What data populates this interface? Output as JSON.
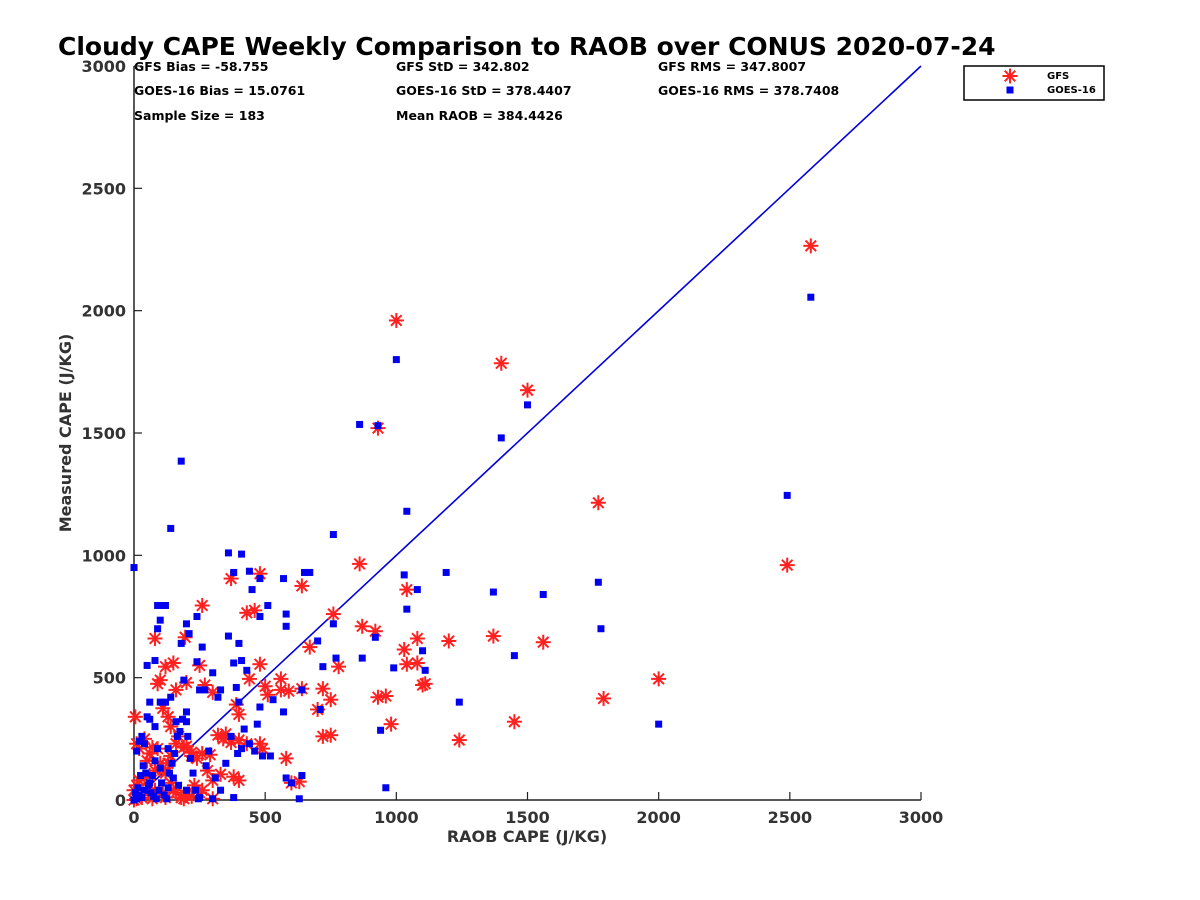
{
  "chart_data": {
    "type": "scatter",
    "title": "Cloudy CAPE Weekly Comparison to RAOB over CONUS 2020-07-24",
    "xlabel": "RAOB CAPE (J/KG)",
    "ylabel": "Measured CAPE (J/KG)",
    "xlim": [
      0,
      3000
    ],
    "ylim": [
      0,
      3000
    ],
    "xticks": [
      "0",
      "500",
      "1000",
      "1500",
      "2000",
      "2500",
      "3000"
    ],
    "yticks": [
      "0",
      "500",
      "1000",
      "1500",
      "2000",
      "2500",
      "3000"
    ],
    "grid": false,
    "legend_position": "top-right",
    "reference_line": {
      "x": [
        0,
        3000
      ],
      "y": [
        0,
        3000
      ],
      "color": "#0000dd"
    },
    "stats": [
      {
        "label": "GFS Bias = -58.755"
      },
      {
        "label": "GFS StD = 342.802"
      },
      {
        "label": "GFS RMS = 347.8007"
      },
      {
        "label": "GOES-16 Bias = 15.0761"
      },
      {
        "label": "GOES-16 StD = 378.4407"
      },
      {
        "label": "GOES-16 RMS = 378.7408"
      },
      {
        "label": "Sample Size = 183"
      },
      {
        "label": "Mean RAOB = 384.4426"
      }
    ],
    "series": [
      {
        "name": "GFS",
        "marker": "asterisk",
        "color": "#ff2020",
        "points": [
          [
            2580,
            2265
          ],
          [
            1000,
            1960
          ],
          [
            1400,
            1785
          ],
          [
            1500,
            1675
          ],
          [
            930,
            1520
          ],
          [
            1770,
            1215
          ],
          [
            2490,
            960
          ],
          [
            860,
            965
          ],
          [
            480,
            925
          ],
          [
            370,
            905
          ],
          [
            640,
            875
          ],
          [
            1040,
            860
          ],
          [
            260,
            795
          ],
          [
            460,
            775
          ],
          [
            430,
            765
          ],
          [
            760,
            760
          ],
          [
            870,
            710
          ],
          [
            920,
            690
          ],
          [
            1080,
            660
          ],
          [
            1200,
            650
          ],
          [
            1370,
            670
          ],
          [
            1560,
            645
          ],
          [
            80,
            660
          ],
          [
            195,
            665
          ],
          [
            670,
            625
          ],
          [
            1030,
            615
          ],
          [
            1110,
            475
          ],
          [
            1100,
            470
          ],
          [
            1040,
            555
          ],
          [
            1080,
            560
          ],
          [
            780,
            545
          ],
          [
            480,
            555
          ],
          [
            440,
            495
          ],
          [
            560,
            495
          ],
          [
            590,
            445
          ],
          [
            720,
            455
          ],
          [
            960,
            425
          ],
          [
            930,
            420
          ],
          [
            1790,
            415
          ],
          [
            2000,
            495
          ],
          [
            750,
            410
          ],
          [
            390,
            390
          ],
          [
            400,
            350
          ],
          [
            500,
            465
          ],
          [
            510,
            430
          ],
          [
            560,
            450
          ],
          [
            640,
            455
          ],
          [
            700,
            370
          ],
          [
            720,
            260
          ],
          [
            750,
            265
          ],
          [
            980,
            310
          ],
          [
            1450,
            320
          ],
          [
            1240,
            245
          ],
          [
            100,
            490
          ],
          [
            120,
            545
          ],
          [
            150,
            560
          ],
          [
            160,
            450
          ],
          [
            200,
            480
          ],
          [
            90,
            475
          ],
          [
            110,
            375
          ],
          [
            130,
            340
          ],
          [
            140,
            300
          ],
          [
            170,
            260
          ],
          [
            190,
            215
          ],
          [
            220,
            195
          ],
          [
            250,
            550
          ],
          [
            270,
            470
          ],
          [
            300,
            440
          ],
          [
            320,
            265
          ],
          [
            340,
            250
          ],
          [
            370,
            235
          ],
          [
            400,
            245
          ],
          [
            430,
            230
          ],
          [
            480,
            230
          ],
          [
            490,
            210
          ],
          [
            580,
            170
          ],
          [
            600,
            70
          ],
          [
            630,
            75
          ],
          [
            400,
            80
          ],
          [
            380,
            95
          ],
          [
            290,
            185
          ],
          [
            260,
            190
          ],
          [
            240,
            170
          ],
          [
            220,
            180
          ],
          [
            200,
            220
          ],
          [
            160,
            230
          ],
          [
            140,
            180
          ],
          [
            130,
            150
          ],
          [
            110,
            130
          ],
          [
            80,
            120
          ],
          [
            60,
            100
          ],
          [
            40,
            90
          ],
          [
            20,
            80
          ],
          [
            10,
            60
          ],
          [
            0,
            40
          ],
          [
            5,
            340
          ],
          [
            10,
            230
          ],
          [
            20,
            210
          ],
          [
            40,
            250
          ],
          [
            50,
            160
          ],
          [
            60,
            190
          ],
          [
            70,
            215
          ],
          [
            90,
            210
          ],
          [
            100,
            150
          ],
          [
            120,
            110
          ],
          [
            140,
            70
          ],
          [
            160,
            30
          ],
          [
            180,
            10
          ],
          [
            200,
            20
          ],
          [
            230,
            60
          ],
          [
            260,
            40
          ],
          [
            300,
            80
          ],
          [
            330,
            105
          ],
          [
            280,
            120
          ],
          [
            250,
            30
          ],
          [
            220,
            15
          ],
          [
            190,
            5
          ],
          [
            150,
            40
          ],
          [
            110,
            30
          ],
          [
            80,
            40
          ],
          [
            60,
            20
          ],
          [
            30,
            10
          ],
          [
            10,
            5
          ],
          [
            0,
            0
          ],
          [
            70,
            5
          ],
          [
            120,
            10
          ],
          [
            300,
            5
          ],
          [
            350,
            270
          ]
        ]
      },
      {
        "name": "GOES-16",
        "marker": "square",
        "color": "#0000ee",
        "points": [
          [
            2580,
            2055
          ],
          [
            1000,
            1800
          ],
          [
            1500,
            1615
          ],
          [
            1400,
            1480
          ],
          [
            860,
            1535
          ],
          [
            930,
            1530
          ],
          [
            180,
            1385
          ],
          [
            140,
            1110
          ],
          [
            2490,
            1245
          ],
          [
            1040,
            1180
          ],
          [
            760,
            1085
          ],
          [
            360,
            1010
          ],
          [
            410,
            1005
          ],
          [
            0,
            950
          ],
          [
            380,
            930
          ],
          [
            440,
            935
          ],
          [
            480,
            905
          ],
          [
            650,
            930
          ],
          [
            670,
            930
          ],
          [
            570,
            905
          ],
          [
            1030,
            920
          ],
          [
            1190,
            930
          ],
          [
            1770,
            890
          ],
          [
            1370,
            850
          ],
          [
            1560,
            840
          ],
          [
            1080,
            860
          ],
          [
            450,
            860
          ],
          [
            90,
            795
          ],
          [
            110,
            795
          ],
          [
            120,
            795
          ],
          [
            510,
            795
          ],
          [
            1040,
            780
          ],
          [
            580,
            760
          ],
          [
            240,
            750
          ],
          [
            480,
            750
          ],
          [
            760,
            720
          ],
          [
            1780,
            700
          ],
          [
            200,
            720
          ],
          [
            210,
            680
          ],
          [
            100,
            735
          ],
          [
            90,
            700
          ],
          [
            580,
            710
          ],
          [
            920,
            665
          ],
          [
            700,
            650
          ],
          [
            1100,
            610
          ],
          [
            180,
            640
          ],
          [
            260,
            625
          ],
          [
            360,
            670
          ],
          [
            400,
            640
          ],
          [
            1450,
            590
          ],
          [
            50,
            550
          ],
          [
            80,
            570
          ],
          [
            240,
            565
          ],
          [
            380,
            560
          ],
          [
            410,
            570
          ],
          [
            430,
            530
          ],
          [
            770,
            580
          ],
          [
            870,
            580
          ],
          [
            990,
            540
          ],
          [
            1110,
            530
          ],
          [
            720,
            545
          ],
          [
            120,
            400
          ],
          [
            140,
            420
          ],
          [
            190,
            490
          ],
          [
            200,
            360
          ],
          [
            250,
            450
          ],
          [
            300,
            520
          ],
          [
            330,
            450
          ],
          [
            390,
            460
          ],
          [
            400,
            400
          ],
          [
            480,
            380
          ],
          [
            530,
            410
          ],
          [
            570,
            360
          ],
          [
            640,
            450
          ],
          [
            710,
            370
          ],
          [
            1240,
            400
          ],
          [
            100,
            400
          ],
          [
            60,
            330
          ],
          [
            50,
            340
          ],
          [
            30,
            260
          ],
          [
            20,
            240
          ],
          [
            10,
            200
          ],
          [
            40,
            230
          ],
          [
            130,
            210
          ],
          [
            90,
            210
          ],
          [
            160,
            320
          ],
          [
            200,
            320
          ],
          [
            270,
            450
          ],
          [
            320,
            420
          ],
          [
            410,
            210
          ],
          [
            470,
            310
          ],
          [
            490,
            180
          ],
          [
            520,
            180
          ],
          [
            580,
            90
          ],
          [
            640,
            100
          ],
          [
            600,
            70
          ],
          [
            630,
            5
          ],
          [
            940,
            285
          ],
          [
            960,
            50
          ],
          [
            2000,
            310
          ],
          [
            330,
            40
          ],
          [
            380,
            10
          ],
          [
            300,
            5
          ],
          [
            250,
            10
          ],
          [
            200,
            40
          ],
          [
            170,
            60
          ],
          [
            150,
            90
          ],
          [
            130,
            50
          ],
          [
            100,
            130
          ],
          [
            80,
            160
          ],
          [
            70,
            100
          ],
          [
            60,
            70
          ],
          [
            40,
            40
          ],
          [
            30,
            10
          ],
          [
            20,
            20
          ],
          [
            10,
            5
          ],
          [
            0,
            0
          ],
          [
            5,
            30
          ],
          [
            15,
            50
          ],
          [
            25,
            100
          ],
          [
            35,
            140
          ],
          [
            45,
            110
          ],
          [
            55,
            60
          ],
          [
            65,
            30
          ],
          [
            75,
            15
          ],
          [
            85,
            5
          ],
          [
            95,
            40
          ],
          [
            105,
            70
          ],
          [
            115,
            20
          ],
          [
            125,
            5
          ],
          [
            135,
            110
          ],
          [
            145,
            150
          ],
          [
            155,
            190
          ],
          [
            165,
            260
          ],
          [
            175,
            280
          ],
          [
            185,
            330
          ],
          [
            205,
            260
          ],
          [
            215,
            170
          ],
          [
            225,
            110
          ],
          [
            235,
            40
          ],
          [
            245,
            5
          ],
          [
            275,
            140
          ],
          [
            285,
            200
          ],
          [
            310,
            90
          ],
          [
            350,
            150
          ],
          [
            370,
            260
          ],
          [
            395,
            190
          ],
          [
            420,
            290
          ],
          [
            440,
            230
          ],
          [
            460,
            200
          ],
          [
            60,
            400
          ],
          [
            80,
            300
          ]
        ]
      }
    ]
  }
}
